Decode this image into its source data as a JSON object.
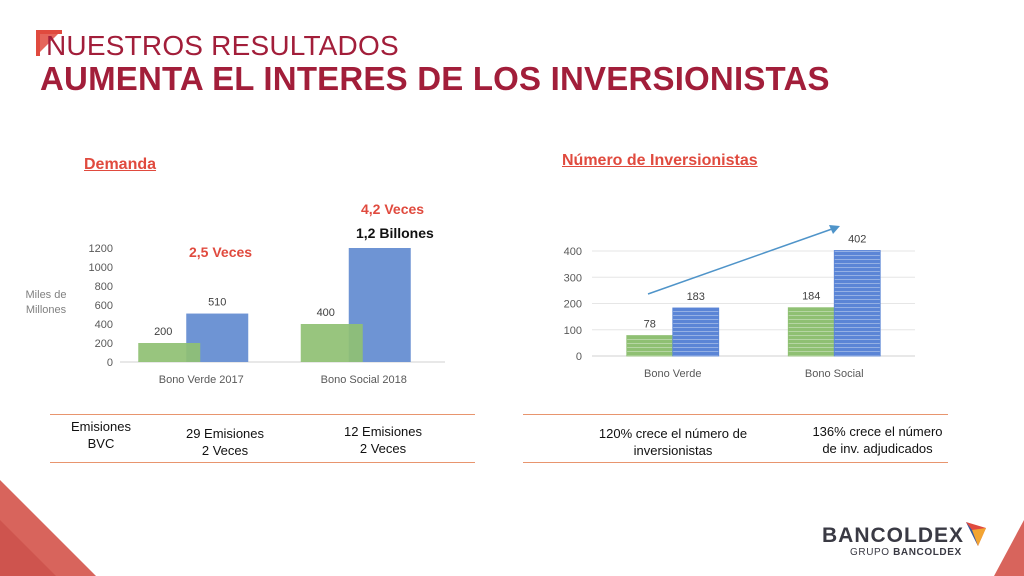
{
  "header": {
    "kicker": "NUESTROS RESULTADOS",
    "title": "AUMENTA EL INTERES DE LOS INVERSIONISTAS"
  },
  "left_section": {
    "title": "Demanda",
    "annot_ratio_1": "2,5 Veces",
    "annot_ratio_2": "4,2 Veces",
    "annot_amount": "1,2  Billones",
    "axis_unit": [
      "Miles de",
      "Millones"
    ]
  },
  "right_section": {
    "title": "Número de Inversionistas"
  },
  "tables": {
    "left": {
      "label": [
        "Emisiones",
        "BVC"
      ],
      "col1": [
        "29 Emisiones",
        "2 Veces"
      ],
      "col2": [
        "12 Emisiones",
        "2 Veces"
      ]
    },
    "right": {
      "col1": [
        "120% crece el número de",
        "inversionistas"
      ],
      "col2": [
        "136% crece el número",
        "de inv. adjudicados"
      ]
    }
  },
  "logo": {
    "name": "BANCOLDEX",
    "sub_prefix": "GRUPO ",
    "sub_bold": "BANCOLDEX"
  },
  "colors": {
    "brand": "#a21e3a",
    "accent": "#e04a3e",
    "green": "#8fc073",
    "blue": "#6e94d4",
    "blue_dark": "#3f6fcf",
    "rule": "#e8956e",
    "arrow": "#4f94c9"
  },
  "chart_data": [
    {
      "type": "bar",
      "categories": [
        "Bono Verde 2017",
        "Bono Social 2018"
      ],
      "series": [
        {
          "values": [
            200,
            400
          ],
          "color": "#8fc073"
        },
        {
          "values": [
            510,
            1200
          ],
          "color": "#6e94d4"
        }
      ],
      "data_labels": [
        [
          "200",
          "400"
        ],
        [
          "510",
          ""
        ]
      ],
      "ylim": [
        0,
        1200
      ],
      "yticks": [
        0,
        200,
        400,
        600,
        800,
        1000,
        1200
      ],
      "grid": false
    },
    {
      "type": "bar",
      "categories": [
        "Bono Verde",
        "Bono Social"
      ],
      "series": [
        {
          "values": [
            78,
            184
          ],
          "color": "#8fc073",
          "striped": true
        },
        {
          "values": [
            183,
            402
          ],
          "color": "#5b85d6",
          "striped": true
        }
      ],
      "data_labels": [
        [
          "78",
          "184"
        ],
        [
          "183",
          "402"
        ]
      ],
      "ylim": [
        0,
        400
      ],
      "yticks": [
        0,
        100,
        200,
        300,
        400
      ],
      "grid": true,
      "trend_arrow": true
    }
  ]
}
